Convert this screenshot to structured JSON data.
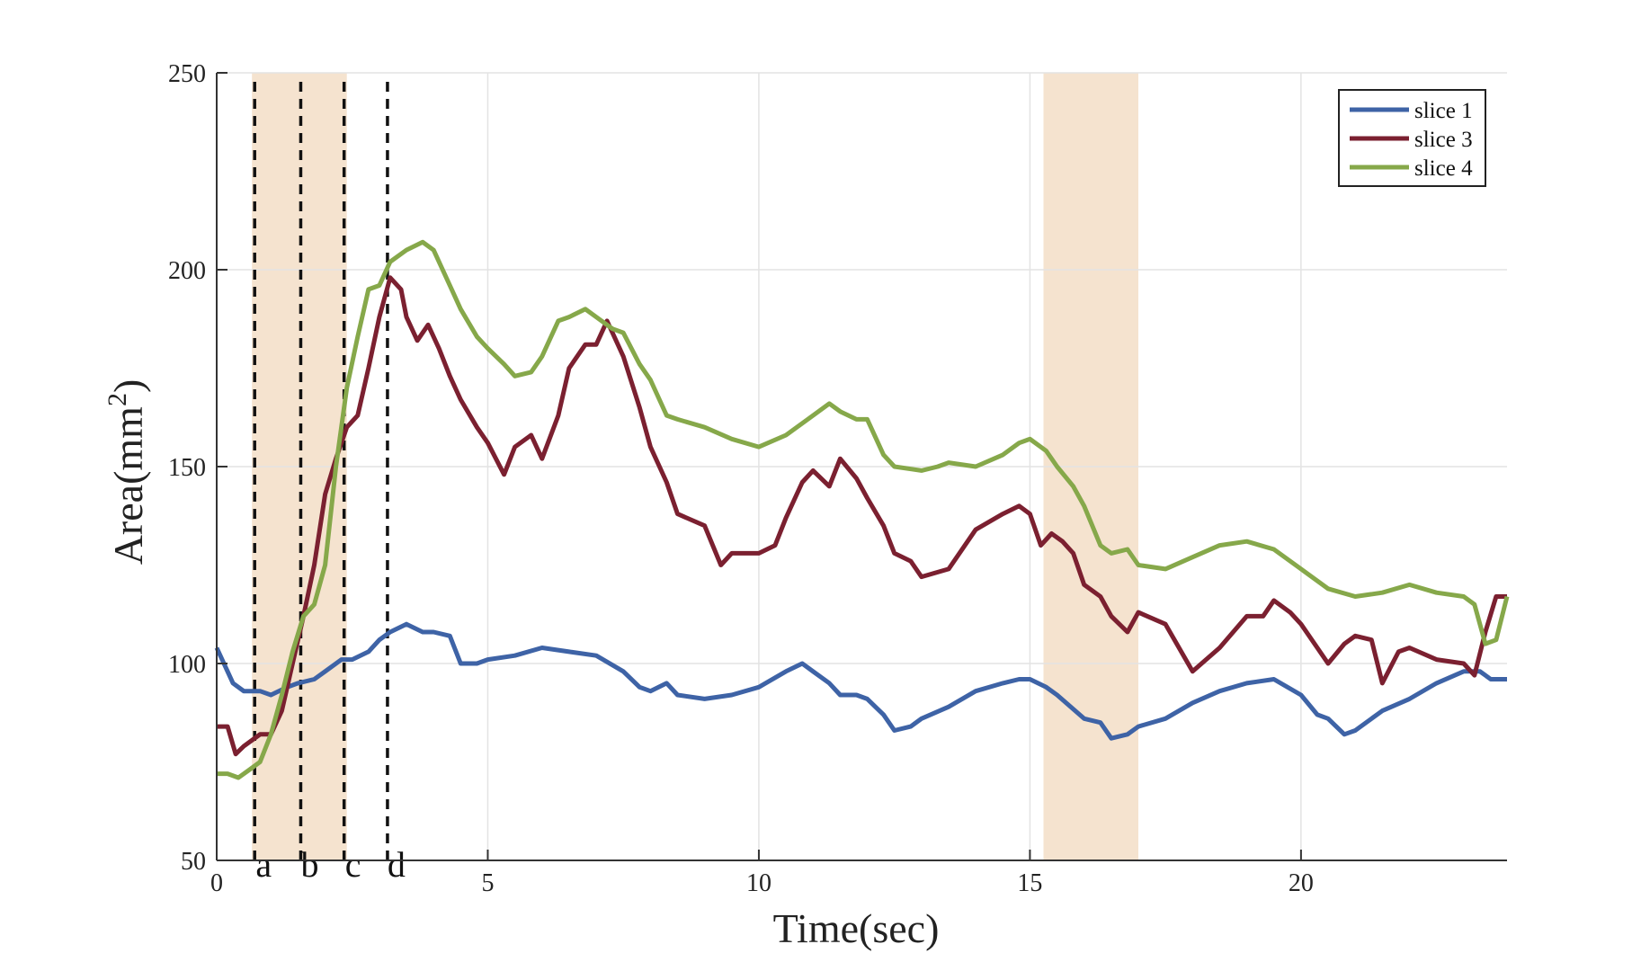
{
  "chart_data": {
    "type": "line",
    "xlabel": "Time(sec)",
    "ylabel": "Area(mm",
    "ylabel_superscript": "2",
    "ylabel_close": ")",
    "xlim": [
      0,
      23.8
    ],
    "ylim": [
      50,
      250
    ],
    "xticks": [
      0,
      5,
      10,
      15,
      20
    ],
    "xtick_labels": [
      "0",
      "5",
      "10",
      "15",
      "20"
    ],
    "yticks": [
      50,
      100,
      150,
      200,
      250
    ],
    "ytick_labels": [
      "50",
      "100",
      "150",
      "200",
      "250"
    ],
    "grid": true,
    "legend_position": "top-right",
    "shaded_regions": [
      {
        "x0": 0.65,
        "x1": 2.4,
        "color": "#f5e3cf"
      },
      {
        "x0": 15.25,
        "x1": 17.0,
        "color": "#f5e3cf"
      }
    ],
    "markers": [
      {
        "label": "a",
        "x": 0.7
      },
      {
        "label": "b",
        "x": 1.55
      },
      {
        "label": "c",
        "x": 2.35
      },
      {
        "label": "d",
        "x": 3.15
      }
    ],
    "series": [
      {
        "name": "slice 1",
        "color": "#3e63a6",
        "x": [
          0,
          0.3,
          0.5,
          0.8,
          1.0,
          1.3,
          1.5,
          1.8,
          2.0,
          2.3,
          2.5,
          2.8,
          3.0,
          3.2,
          3.5,
          3.8,
          4.0,
          4.3,
          4.5,
          4.8,
          5.0,
          5.5,
          6.0,
          6.5,
          7.0,
          7.5,
          7.8,
          8.0,
          8.3,
          8.5,
          9.0,
          9.5,
          10.0,
          10.5,
          10.8,
          11.0,
          11.3,
          11.5,
          11.8,
          12.0,
          12.3,
          12.5,
          12.8,
          13.0,
          13.5,
          14.0,
          14.5,
          14.8,
          15.0,
          15.3,
          15.5,
          16.0,
          16.3,
          16.5,
          16.8,
          17.0,
          17.5,
          18.0,
          18.5,
          19.0,
          19.5,
          20.0,
          20.3,
          20.5,
          20.8,
          21.0,
          21.5,
          22.0,
          22.5,
          23.0,
          23.3,
          23.5,
          23.8
        ],
        "values": [
          104,
          95,
          93,
          93,
          92,
          94,
          95,
          96,
          98,
          101,
          101,
          103,
          106,
          108,
          110,
          108,
          108,
          107,
          100,
          100,
          101,
          102,
          104,
          103,
          102,
          98,
          94,
          93,
          95,
          92,
          91,
          92,
          94,
          98,
          100,
          98,
          95,
          92,
          92,
          91,
          87,
          83,
          84,
          86,
          89,
          93,
          95,
          96,
          96,
          94,
          92,
          86,
          85,
          81,
          82,
          84,
          86,
          90,
          93,
          95,
          96,
          92,
          87,
          86,
          82,
          83,
          88,
          91,
          95,
          98,
          98,
          96,
          96
        ]
      },
      {
        "name": "slice 3",
        "color": "#7b2030",
        "x": [
          0,
          0.2,
          0.35,
          0.5,
          0.7,
          0.8,
          1.0,
          1.2,
          1.4,
          1.6,
          1.8,
          2.0,
          2.2,
          2.4,
          2.6,
          2.8,
          3.0,
          3.2,
          3.4,
          3.5,
          3.7,
          3.9,
          4.1,
          4.3,
          4.5,
          4.8,
          5.0,
          5.3,
          5.5,
          5.8,
          6.0,
          6.3,
          6.5,
          6.8,
          7.0,
          7.2,
          7.5,
          7.8,
          8.0,
          8.3,
          8.5,
          9.0,
          9.3,
          9.5,
          10.0,
          10.3,
          10.5,
          10.8,
          11.0,
          11.3,
          11.5,
          11.8,
          12.0,
          12.3,
          12.5,
          12.8,
          13.0,
          13.5,
          14.0,
          14.5,
          14.8,
          15.0,
          15.2,
          15.4,
          15.6,
          15.8,
          16.0,
          16.3,
          16.5,
          16.8,
          17.0,
          17.5,
          18.0,
          18.5,
          19.0,
          19.3,
          19.5,
          19.8,
          20.0,
          20.3,
          20.5,
          20.8,
          21.0,
          21.3,
          21.5,
          21.8,
          22.0,
          22.5,
          23.0,
          23.2,
          23.4,
          23.6,
          23.8
        ],
        "values": [
          84,
          84,
          77,
          79,
          81,
          82,
          82,
          88,
          100,
          112,
          125,
          143,
          152,
          160,
          163,
          175,
          188,
          198,
          195,
          188,
          182,
          186,
          180,
          173,
          167,
          160,
          156,
          148,
          155,
          158,
          152,
          163,
          175,
          181,
          181,
          187,
          178,
          165,
          155,
          146,
          138,
          135,
          125,
          128,
          128,
          130,
          137,
          146,
          149,
          145,
          152,
          147,
          142,
          135,
          128,
          126,
          122,
          124,
          134,
          138,
          140,
          138,
          130,
          133,
          131,
          128,
          120,
          117,
          112,
          108,
          113,
          110,
          98,
          104,
          112,
          112,
          116,
          113,
          110,
          104,
          100,
          105,
          107,
          106,
          95,
          103,
          104,
          101,
          100,
          97,
          108,
          117,
          117
        ]
      },
      {
        "name": "slice 4",
        "color": "#86a84a",
        "x": [
          0,
          0.2,
          0.4,
          0.6,
          0.8,
          1.0,
          1.2,
          1.4,
          1.6,
          1.8,
          2.0,
          2.2,
          2.4,
          2.6,
          2.8,
          3.0,
          3.2,
          3.5,
          3.8,
          4.0,
          4.3,
          4.5,
          4.8,
          5.0,
          5.3,
          5.5,
          5.8,
          6.0,
          6.3,
          6.5,
          6.8,
          7.0,
          7.3,
          7.5,
          7.8,
          8.0,
          8.3,
          8.5,
          9.0,
          9.5,
          10.0,
          10.5,
          11.0,
          11.3,
          11.5,
          11.8,
          12.0,
          12.3,
          12.5,
          13.0,
          13.3,
          13.5,
          14.0,
          14.5,
          14.8,
          15.0,
          15.3,
          15.5,
          15.8,
          16.0,
          16.3,
          16.5,
          16.8,
          17.0,
          17.5,
          18.0,
          18.5,
          19.0,
          19.5,
          20.0,
          20.5,
          21.0,
          21.5,
          22.0,
          22.5,
          23.0,
          23.2,
          23.4,
          23.6,
          23.8
        ],
        "values": [
          72,
          72,
          71,
          73,
          75,
          82,
          92,
          103,
          112,
          115,
          125,
          150,
          170,
          183,
          195,
          196,
          202,
          205,
          207,
          205,
          196,
          190,
          183,
          180,
          176,
          173,
          174,
          178,
          187,
          188,
          190,
          188,
          185,
          184,
          176,
          172,
          163,
          162,
          160,
          157,
          155,
          158,
          163,
          166,
          164,
          162,
          162,
          153,
          150,
          149,
          150,
          151,
          150,
          153,
          156,
          157,
          154,
          150,
          145,
          140,
          130,
          128,
          129,
          125,
          124,
          127,
          130,
          131,
          129,
          124,
          119,
          117,
          118,
          120,
          118,
          117,
          115,
          105,
          106,
          117
        ]
      }
    ]
  }
}
